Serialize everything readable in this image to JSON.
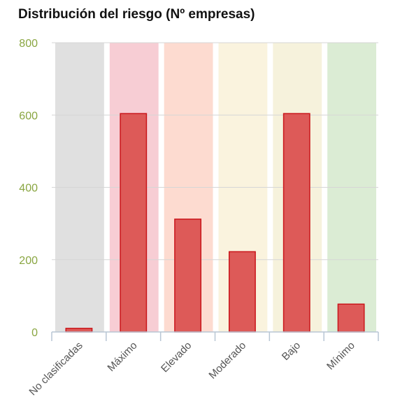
{
  "chart_data": {
    "type": "bar",
    "title": "Distribución del riesgo (Nº empresas)",
    "xlabel": "",
    "ylabel": "",
    "categories": [
      "No clasificadas",
      "Máximo",
      "Elevado",
      "Moderado",
      "Bajo",
      "Mínimo"
    ],
    "values": [
      10,
      604,
      312,
      222,
      604,
      77
    ],
    "ylim": [
      0,
      800
    ],
    "yticks": [
      "0",
      "200",
      "400",
      "600",
      "800"
    ],
    "grid": true,
    "legend": "none",
    "colors": {
      "bar_fill": "#dd5a58",
      "bar_stroke": "#c9151a",
      "axis_tick_text": "#8aa642",
      "category_backgrounds": [
        "#e0e0e0",
        "#f7cdd4",
        "#fddbd0",
        "#faf3de",
        "#f6f2dc",
        "#dbecd4"
      ]
    }
  }
}
